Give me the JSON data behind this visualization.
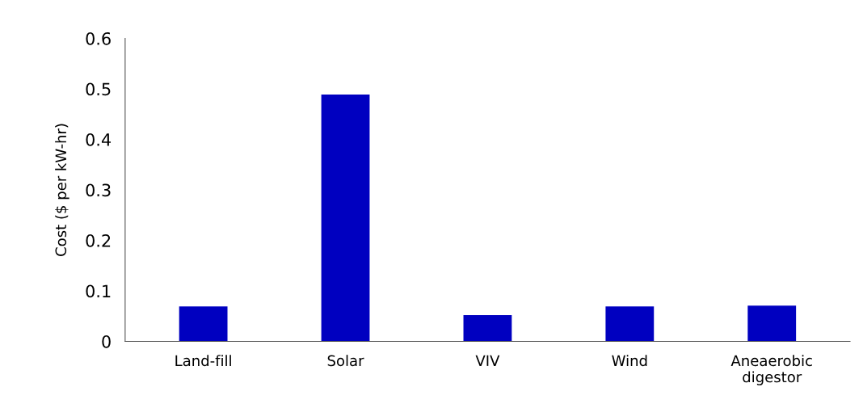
{
  "chart_data": {
    "type": "bar",
    "ylabel": "Cost ($ per kW-hr)",
    "categories": [
      "Land-fill",
      "Solar",
      "VIV",
      "Wind",
      "Aneaerobic\ndigestor"
    ],
    "values": [
      0.069,
      0.489,
      0.052,
      0.069,
      0.071
    ],
    "color": "#0000c0",
    "ylim": [
      0,
      0.6
    ],
    "yticks": [
      0,
      0.1,
      0.2,
      0.3,
      0.4,
      0.5,
      0.6
    ],
    "grid": false
  }
}
